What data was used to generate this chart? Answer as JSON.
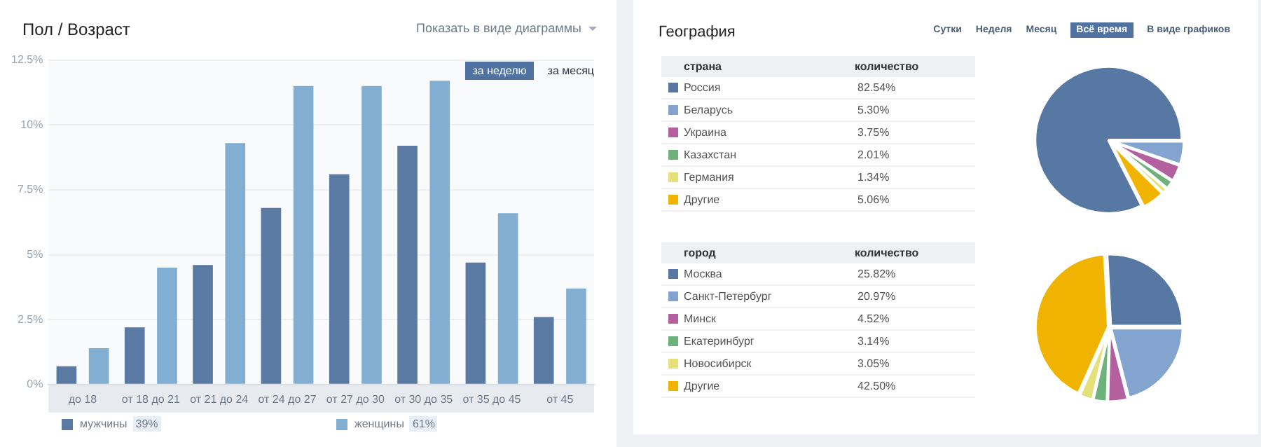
{
  "chart_data": [
    {
      "type": "bar",
      "title": "Пол / Возраст",
      "categories": [
        "до 18",
        "от 18 до 21",
        "от 21 до 24",
        "от 24 до 27",
        "от 27 до 30",
        "от 30 до 35",
        "от 35 до 45",
        "от 45"
      ],
      "series": [
        {
          "name": "мужчины",
          "color": "#5a7aa3",
          "values": [
            0.7,
            2.2,
            4.6,
            6.8,
            8.1,
            9.2,
            4.7,
            2.6
          ]
        },
        {
          "name": "женщины",
          "color": "#82aed1",
          "values": [
            1.4,
            4.5,
            9.3,
            11.5,
            11.5,
            11.7,
            6.6,
            3.7
          ]
        }
      ],
      "ylim": [
        0,
        12.5
      ],
      "yticks": [
        {
          "value": 0,
          "label": "0%"
        },
        {
          "value": 2.5,
          "label": "2.5%"
        },
        {
          "value": 5,
          "label": "5%"
        },
        {
          "value": 7.5,
          "label": "7.5%"
        },
        {
          "value": 10,
          "label": "10%"
        },
        {
          "value": 12.5,
          "label": "12.5%"
        }
      ],
      "grid": "y",
      "legend": "bottom",
      "annotations": [
        "Показать в виде диаграммы",
        "за неделю",
        "за месяц",
        "39%",
        "61%"
      ]
    },
    {
      "type": "pie",
      "title": "География",
      "legend_title": "страна",
      "categories": [
        "Россия",
        "Беларусь",
        "Украина",
        "Казахстан",
        "Германия",
        "Другие"
      ],
      "values": [
        82.54,
        5.3,
        3.75,
        2.01,
        1.34,
        5.06
      ],
      "value_labels": [
        "82.54%",
        "5.30%",
        "3.75%",
        "2.01%",
        "1.34%",
        "5.06%"
      ],
      "colors": [
        "#5878a4",
        "#82a4cf",
        "#b5609e",
        "#6db27a",
        "#e6e07a",
        "#f0b400"
      ],
      "legend": "left",
      "annotations": [
        "Сутки",
        "Неделя",
        "Месяц",
        "Всё время",
        "В виде графиков",
        "количество"
      ]
    },
    {
      "type": "pie",
      "legend_title": "город",
      "categories": [
        "Москва",
        "Санкт-Петербург",
        "Минск",
        "Екатеринбург",
        "Новосибирск",
        "Другие"
      ],
      "values": [
        25.82,
        20.97,
        4.52,
        3.14,
        3.05,
        42.5
      ],
      "value_labels": [
        "25.82%",
        "20.97%",
        "4.52%",
        "3.14%",
        "3.05%",
        "42.50%"
      ],
      "colors": [
        "#5878a4",
        "#82a4cf",
        "#b5609e",
        "#6db27a",
        "#e6e07a",
        "#f0b400"
      ],
      "legend": "left",
      "annotations": [
        "количество"
      ]
    }
  ]
}
